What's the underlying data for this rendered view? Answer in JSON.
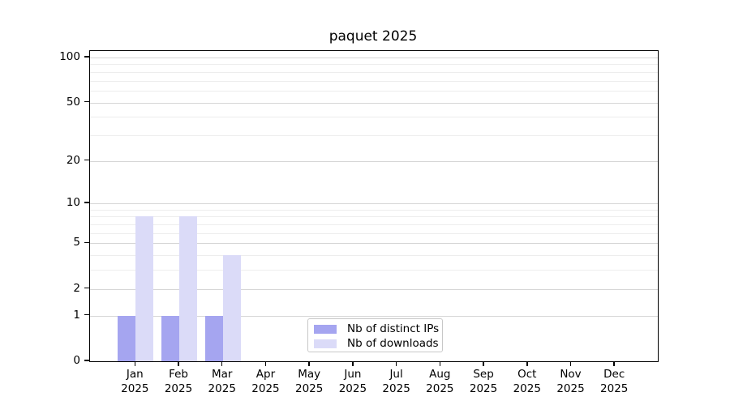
{
  "chart_data": {
    "type": "bar",
    "title": "paquet 2025",
    "categories": [
      {
        "month": "Jan",
        "year": "2025"
      },
      {
        "month": "Feb",
        "year": "2025"
      },
      {
        "month": "Mar",
        "year": "2025"
      },
      {
        "month": "Apr",
        "year": "2025"
      },
      {
        "month": "May",
        "year": "2025"
      },
      {
        "month": "Jun",
        "year": "2025"
      },
      {
        "month": "Jul",
        "year": "2025"
      },
      {
        "month": "Aug",
        "year": "2025"
      },
      {
        "month": "Sep",
        "year": "2025"
      },
      {
        "month": "Oct",
        "year": "2025"
      },
      {
        "month": "Nov",
        "year": "2025"
      },
      {
        "month": "Dec",
        "year": "2025"
      }
    ],
    "series": [
      {
        "name": "Nb of distinct IPs",
        "color": "#a5a5f0",
        "values": [
          1,
          1,
          1,
          0,
          0,
          0,
          0,
          0,
          0,
          0,
          0,
          0
        ]
      },
      {
        "name": "Nb of downloads",
        "color": "#dbdbf8",
        "values": [
          8,
          8,
          4,
          0,
          0,
          0,
          0,
          0,
          0,
          0,
          0,
          0
        ]
      }
    ],
    "yscale": "log1p",
    "ylim": [
      0,
      100
    ],
    "yticks_major": [
      0,
      1,
      2,
      5,
      10,
      20,
      50,
      100
    ],
    "yticks_minor": [
      3,
      4,
      6,
      7,
      8,
      9,
      30,
      40,
      60,
      70,
      80,
      90
    ],
    "grid": true,
    "legend_position": "lower center"
  },
  "colors": {
    "background": "#ffffff",
    "axis": "#000000",
    "grid_major": "#d6d6d6",
    "grid_minor": "#ededed",
    "legend_border": "#c8c8c8",
    "bar_distinct_ips": "#a5a5f0",
    "bar_downloads": "#dbdbf8"
  }
}
